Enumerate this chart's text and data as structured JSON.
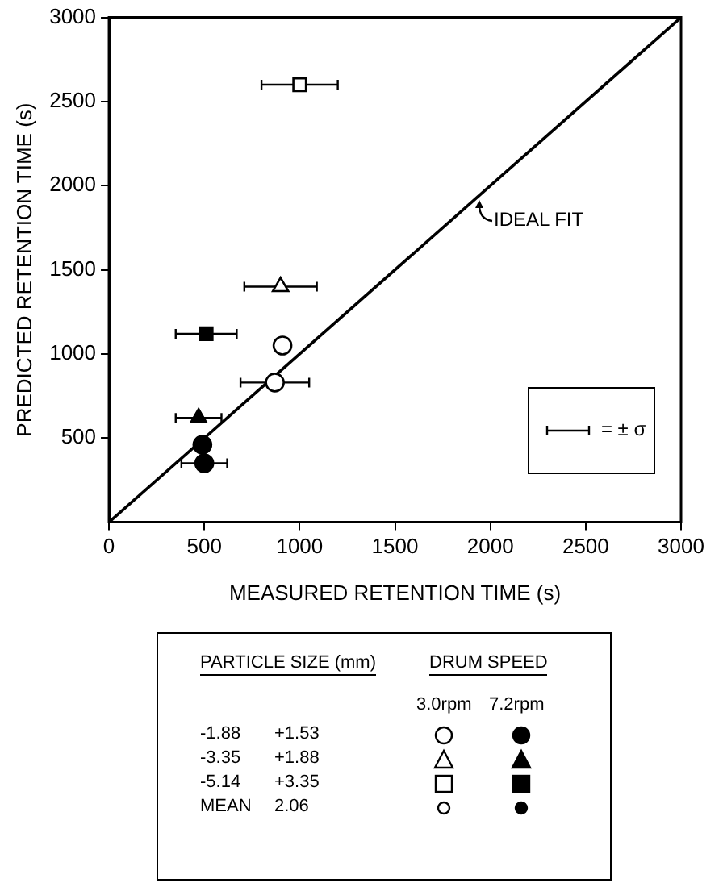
{
  "chart_data": {
    "type": "scatter",
    "xlabel": "MEASURED RETENTION TIME (s)",
    "ylabel": "PREDICTED RETENTION TIME (s)",
    "xlim": [
      0,
      3000
    ],
    "ylim": [
      0,
      3000
    ],
    "xticks": [
      0,
      500,
      1000,
      1500,
      2000,
      2500,
      3000
    ],
    "yticks": [
      500,
      1000,
      1500,
      2000,
      2500,
      3000
    ],
    "grid": false,
    "legend": false,
    "series": [
      {
        "marker": "circle",
        "color": "#ffffff",
        "x": [
          870
        ],
        "values": [
          830
        ],
        "xerrors": [
          180
        ]
      },
      {
        "marker": "circle",
        "color": "#000000",
        "x": [
          500
        ],
        "values": [
          350
        ],
        "xerrors": [
          120
        ]
      },
      {
        "marker": "triangle",
        "color": "#ffffff",
        "x": [
          900
        ],
        "values": [
          1400
        ],
        "xerrors": [
          190
        ]
      },
      {
        "marker": "triangle",
        "color": "#000000",
        "x": [
          470
        ],
        "values": [
          620
        ],
        "xerrors": [
          120
        ]
      },
      {
        "marker": "square",
        "color": "#ffffff",
        "x": [
          1000
        ],
        "values": [
          2600
        ],
        "xerrors": [
          200
        ]
      },
      {
        "marker": "square",
        "color": "#000000",
        "x": [
          510
        ],
        "values": [
          1120
        ],
        "xerrors": [
          160
        ]
      },
      {
        "marker": "circle",
        "color": "#ffffff",
        "x": [
          910
        ],
        "values": [
          1050
        ]
      },
      {
        "marker": "circle",
        "color": "#000000",
        "x": [
          490
        ],
        "values": [
          460
        ]
      },
      {
        "type": "line",
        "marker": "none",
        "color": "#000000",
        "x": [
          0,
          3000
        ],
        "values": [
          0,
          3000
        ]
      }
    ],
    "annotations": [
      {
        "text": "IDEAL FIT",
        "x": 1900,
        "y": 1900
      },
      "= ± σ",
      "PARTICLE SIZE (mm)",
      "DRUM SPEED",
      "3.0rpm",
      "7.2rpm",
      "-1.88",
      "+1.53",
      "-3.35",
      "+1.88",
      "-5.14",
      "+3.35",
      "MEAN",
      "2.06"
    ]
  }
}
